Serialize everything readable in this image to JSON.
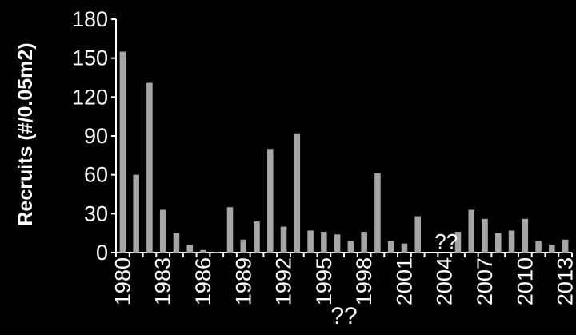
{
  "chart_data": {
    "type": "bar",
    "title": "",
    "xlabel": "",
    "ylabel": "Recruits (#/0.05m2)",
    "ylim": [
      0,
      180
    ],
    "yticks": [
      0,
      30,
      60,
      90,
      120,
      150,
      180
    ],
    "x_tick_labels": [
      "1980",
      "1983",
      "1986",
      "1989",
      "1992",
      "1995",
      "1998",
      "2001",
      "2004",
      "2007",
      "2010",
      "2013"
    ],
    "categories": [
      1980,
      1981,
      1982,
      1983,
      1984,
      1985,
      1986,
      1987,
      1988,
      1989,
      1990,
      1991,
      1992,
      1993,
      1994,
      1995,
      1996,
      1997,
      1998,
      1999,
      2000,
      2001,
      2002,
      2003,
      2004,
      2005,
      2006,
      2007,
      2008,
      2009,
      2010,
      2011,
      2012,
      2013
    ],
    "values": [
      155,
      60,
      131,
      33,
      15,
      6,
      2,
      0.5,
      35,
      10,
      24,
      80,
      20,
      92,
      17,
      16,
      14,
      9,
      16,
      61,
      9,
      7,
      28,
      null,
      null,
      16,
      33,
      26,
      15,
      17,
      26,
      9,
      6,
      10
    ],
    "annotations": [
      {
        "text": "??",
        "year": 2004
      },
      {
        "text": "??",
        "year": 1996.5
      }
    ],
    "bar_color": "#a6a6a6",
    "background_color": "#000000",
    "text_color": "#ffffff",
    "grid": false,
    "legend": "none"
  }
}
